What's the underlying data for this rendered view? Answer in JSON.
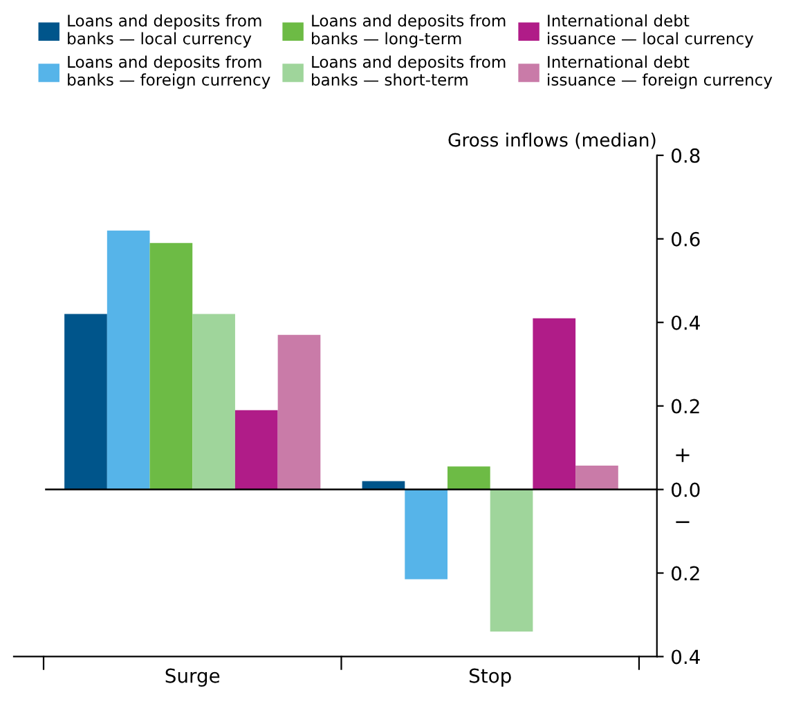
{
  "chart_data": {
    "type": "bar",
    "ylabel": "Gross inflows (median)",
    "categories": [
      "Surge",
      "Stop"
    ],
    "series": [
      {
        "name": "Loans and deposits from\nbanks — local currency",
        "color": "#00558b",
        "values": [
          0.42,
          0.02
        ]
      },
      {
        "name": "Loans and deposits from\nbanks — foreign currency",
        "color": "#56b4e9",
        "values": [
          0.62,
          -0.215
        ]
      },
      {
        "name": "Loans and deposits from\nbanks — long-term",
        "color": "#6dbb45",
        "values": [
          0.59,
          0.055
        ]
      },
      {
        "name": "Loans and deposits from\nbanks — short-term",
        "color": "#9fd59b",
        "values": [
          0.42,
          -0.34
        ]
      },
      {
        "name": "International debt\nissuance — local currency",
        "color": "#b01c88",
        "values": [
          0.19,
          0.41
        ]
      },
      {
        "name": "International debt\nissuance — foreign currency",
        "color": "#c97ba8",
        "values": [
          0.37,
          0.057
        ]
      }
    ],
    "ylim": [
      -0.4,
      0.8
    ],
    "yticks": [
      {
        "value": -0.4,
        "label": "0.4"
      },
      {
        "value": -0.2,
        "label": "0.2"
      },
      {
        "value": 0,
        "label": "0.0"
      },
      {
        "value": 0.2,
        "label": "0.2"
      },
      {
        "value": 0.4,
        "label": "0.4"
      },
      {
        "value": 0.6,
        "label": "0.6"
      },
      {
        "value": 0.8,
        "label": "0.8"
      }
    ],
    "ref_lines": [
      {
        "axis": "y",
        "value": 0,
        "color": "#000000"
      }
    ],
    "annotations": [
      "+",
      "−"
    ],
    "grid": false,
    "legend": "top"
  }
}
